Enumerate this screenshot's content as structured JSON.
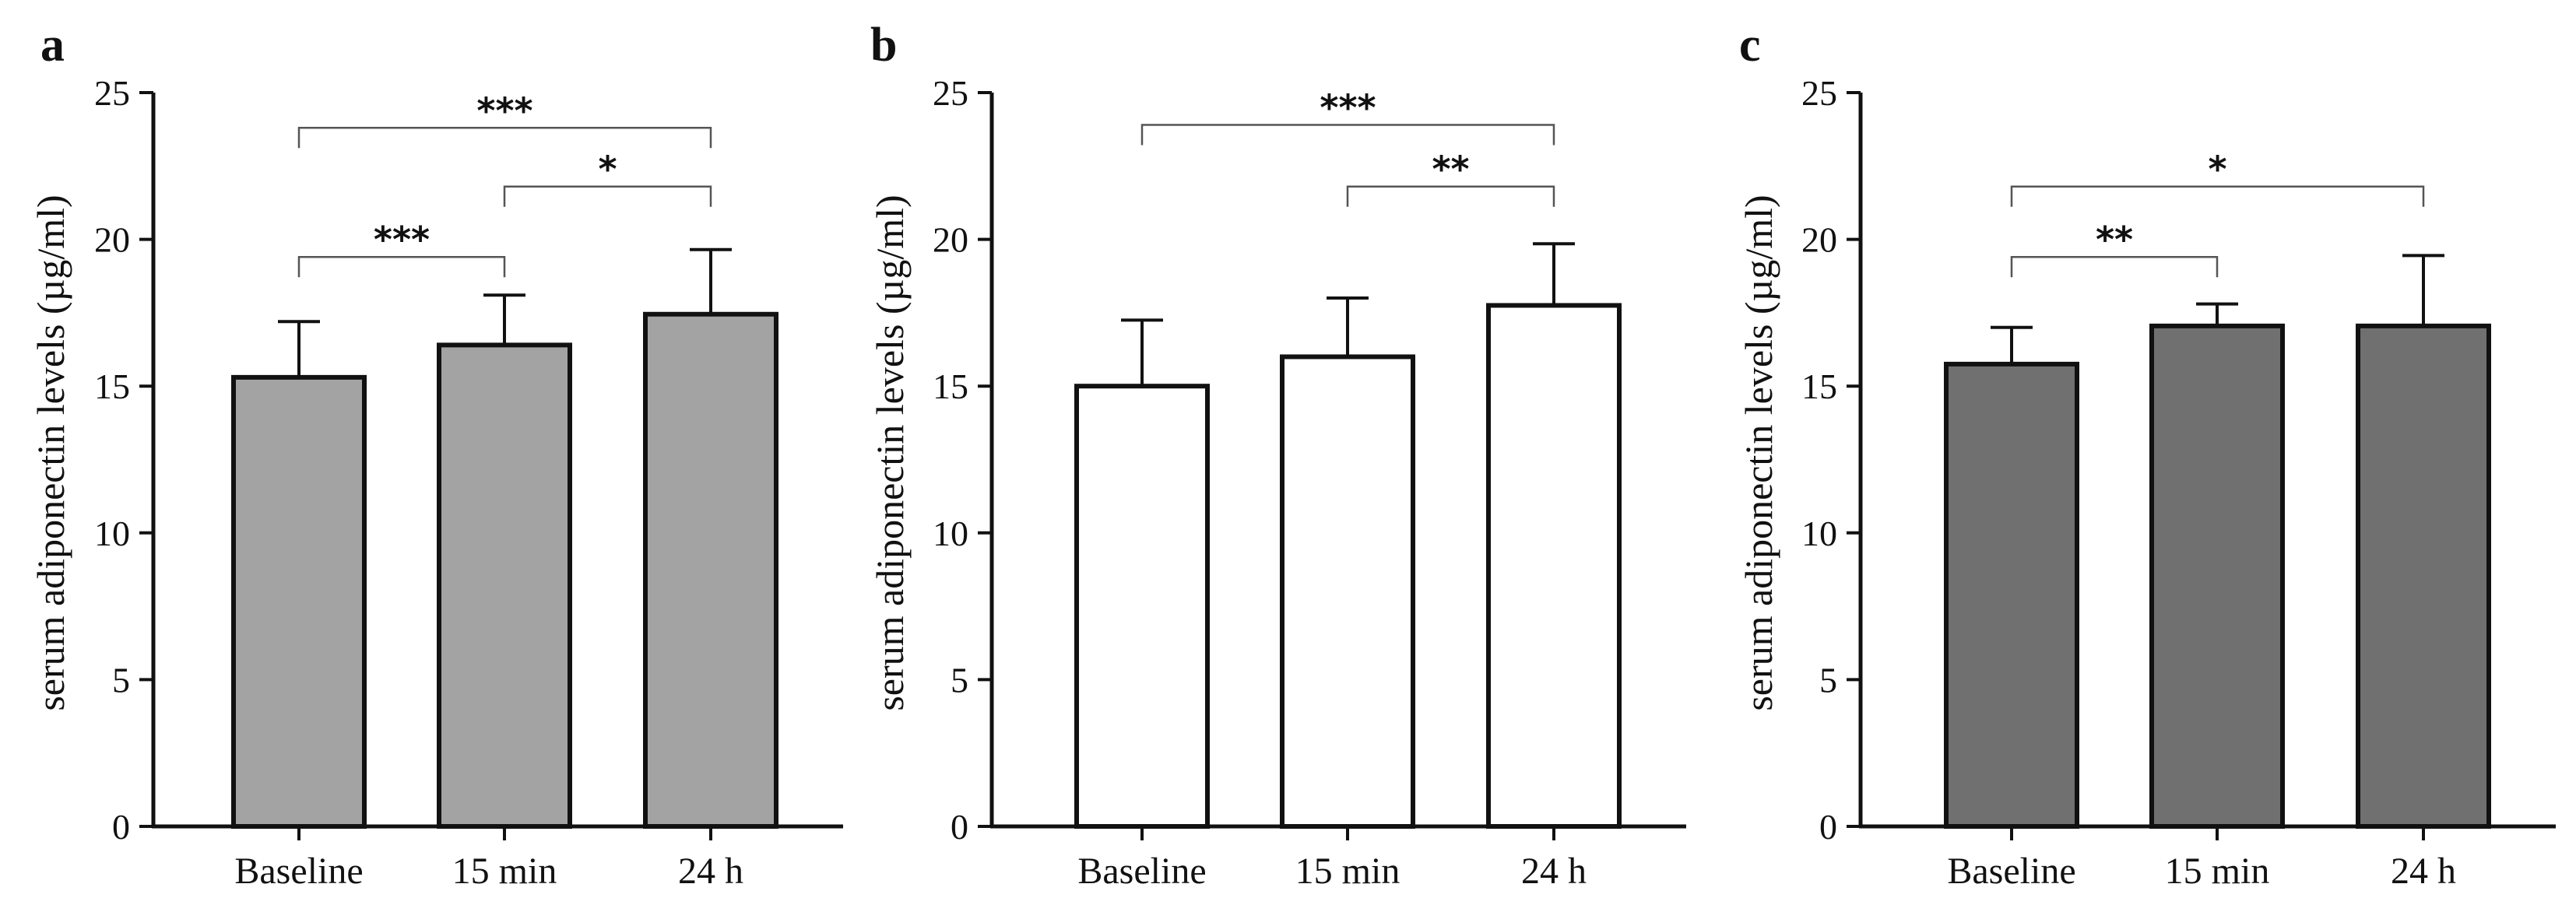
{
  "chart_data": [
    {
      "type": "bar",
      "panel": "a",
      "categories": [
        "Baseline",
        "15 min",
        "24 h"
      ],
      "values": [
        15.3,
        16.4,
        17.45
      ],
      "errors": [
        1.9,
        1.7,
        2.2
      ],
      "fill": "#a3a3a3",
      "ylabel": "serum adiponectin levels (µg/ml)",
      "ylim": [
        0,
        25
      ],
      "yticks": [
        "0",
        "5",
        "10",
        "15",
        "20",
        "25"
      ],
      "brackets": [
        {
          "from": 0,
          "to": 2,
          "level": 23.8,
          "label": "***"
        },
        {
          "from": 1,
          "to": 2,
          "level": 21.8,
          "label": "*"
        },
        {
          "from": 0,
          "to": 1,
          "level": 19.4,
          "label": "***"
        }
      ]
    },
    {
      "type": "bar",
      "panel": "b",
      "categories": [
        "Baseline",
        "15 min",
        "24 h"
      ],
      "values": [
        15.0,
        16.0,
        17.75
      ],
      "errors": [
        2.25,
        2.0,
        2.1
      ],
      "fill": "#ffffff",
      "ylabel": "serum adiponectin levels (µg/ml)",
      "ylim": [
        0,
        25
      ],
      "yticks": [
        "0",
        "5",
        "10",
        "15",
        "20",
        "25"
      ],
      "brackets": [
        {
          "from": 0,
          "to": 2,
          "level": 23.9,
          "label": "***"
        },
        {
          "from": 1,
          "to": 2,
          "level": 21.8,
          "label": "**"
        }
      ]
    },
    {
      "type": "bar",
      "panel": "c",
      "categories": [
        "Baseline",
        "15 min",
        "24 h"
      ],
      "values": [
        15.75,
        17.05,
        17.05
      ],
      "errors": [
        1.25,
        0.75,
        2.4
      ],
      "fill": "#707070",
      "ylabel": "serum adiponectin levels (µg/ml)",
      "ylim": [
        0,
        25
      ],
      "yticks": [
        "0",
        "5",
        "10",
        "15",
        "20",
        "25"
      ],
      "brackets": [
        {
          "from": 0,
          "to": 2,
          "level": 21.8,
          "label": "*"
        },
        {
          "from": 0,
          "to": 1,
          "level": 19.4,
          "label": "**"
        }
      ]
    }
  ]
}
